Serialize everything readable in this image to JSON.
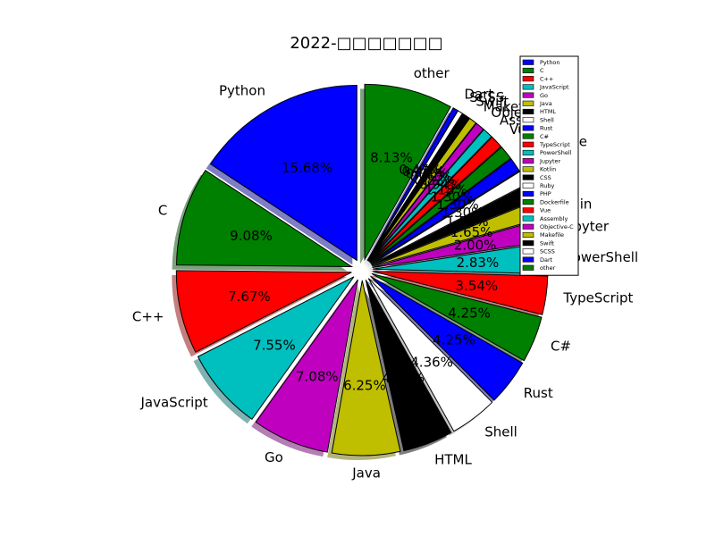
{
  "chart_data": {
    "type": "pie",
    "title": "2022-□□□□□□□",
    "legend": {
      "placement": "top-right"
    },
    "shadow": true,
    "exploded": true,
    "slices": [
      {
        "label": "Python",
        "value": 15.68,
        "pct": "15.68%",
        "color": "#0000ff"
      },
      {
        "label": "C",
        "value": 9.08,
        "pct": "9.08%",
        "color": "#008000"
      },
      {
        "label": "C++",
        "value": 7.67,
        "pct": "7.67%",
        "color": "#ff0000"
      },
      {
        "label": "JavaScript",
        "value": 7.55,
        "pct": "7.55%",
        "color": "#00bfbf"
      },
      {
        "label": "Go",
        "value": 7.08,
        "pct": "7.08%",
        "color": "#bf00bf"
      },
      {
        "label": "Java",
        "value": 6.25,
        "pct": "6.25%",
        "color": "#bfbf00"
      },
      {
        "label": "HTML",
        "value": 4.6,
        "pct": "4.60%",
        "color": "#000000"
      },
      {
        "label": "Shell",
        "value": 4.36,
        "pct": "4.36%",
        "color": "#ffffff"
      },
      {
        "label": "Rust",
        "value": 4.25,
        "pct": "4.25%",
        "color": "#0000ff"
      },
      {
        "label": "C#",
        "value": 4.25,
        "pct": "4.25%",
        "color": "#008000"
      },
      {
        "label": "TypeScript",
        "value": 3.54,
        "pct": "3.54%",
        "color": "#ff0000"
      },
      {
        "label": "PowerShell",
        "value": 2.83,
        "pct": "2.83%",
        "color": "#00bfbf"
      },
      {
        "label": "Jupyter",
        "value": 2.0,
        "pct": "2.00%",
        "color": "#bf00bf"
      },
      {
        "label": "Kotlin",
        "value": 1.65,
        "pct": "1.65%",
        "color": "#bfbf00"
      },
      {
        "label": "CSS",
        "value": 1.53,
        "pct": "1.53%",
        "color": "#000000"
      },
      {
        "label": "Ruby",
        "value": 1.3,
        "pct": "1.30%",
        "color": "#ffffff"
      },
      {
        "label": "PHP",
        "value": 1.3,
        "pct": "1.30%",
        "color": "#0000ff"
      },
      {
        "label": "Dockerfile",
        "value": 1.3,
        "pct": "1.30%",
        "color": "#008000"
      },
      {
        "label": "Vue",
        "value": 1.18,
        "pct": "1.18%",
        "color": "#ff0000"
      },
      {
        "label": "Assembly",
        "value": 0.94,
        "pct": "0.94%",
        "color": "#00bfbf"
      },
      {
        "label": "Objective-C",
        "value": 0.83,
        "pct": "0.83%",
        "color": "#bf00bf"
      },
      {
        "label": "Makefile",
        "value": 0.71,
        "pct": "0.71%",
        "color": "#bfbf00"
      },
      {
        "label": "Swift",
        "value": 0.71,
        "pct": "0.71%",
        "color": "#000000"
      },
      {
        "label": "SCSS",
        "value": 0.47,
        "pct": "0.47%",
        "color": "#ffffff"
      },
      {
        "label": "Dart",
        "value": 0.47,
        "pct": "0.47%",
        "color": "#0000ff"
      },
      {
        "label": "other",
        "value": 8.13,
        "pct": "8.13%",
        "color": "#008000"
      }
    ]
  }
}
